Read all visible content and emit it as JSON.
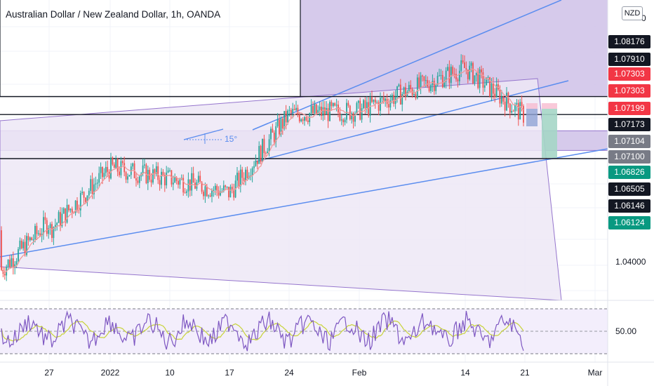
{
  "header": {
    "title": "Australian Dollar / New Zealand Dollar, 1h, OANDA",
    "currency_badge": "NZD",
    "currency_badge_value": "0"
  },
  "colors": {
    "band_fill": "#d1c4e9",
    "wedge_fill": "#ede7f6",
    "wedge_stroke": "#9575cd",
    "trendline": "#5b8def",
    "candle_up": "#26a69a",
    "candle_down": "#ef5350",
    "rsi_line": "#7e57c2",
    "rsi_ma": "#c7d338",
    "label_black": "#131722",
    "label_red": "#f23645",
    "label_gray": "#787b86",
    "label_green": "#089981"
  },
  "price_labels": [
    {
      "value": "1.08176",
      "color": "black"
    },
    {
      "value": "1.07910",
      "color": "black"
    },
    {
      "value": "1.07303",
      "color": "red"
    },
    {
      "value": "1.07303",
      "color": "red"
    },
    {
      "value": "1.07199",
      "color": "red"
    },
    {
      "value": "1.07173",
      "color": "black"
    },
    {
      "value": "1.07104",
      "color": "gray"
    },
    {
      "value": "1.07100",
      "color": "gray"
    },
    {
      "value": "1.06826",
      "color": "green"
    },
    {
      "value": "1.06505",
      "color": "black"
    },
    {
      "value": "1.06146",
      "color": "black"
    },
    {
      "value": "1.06124",
      "color": "green"
    }
  ],
  "price_axis": {
    "tick_label": "1.04000"
  },
  "rsi_axis": {
    "tick_label": "50.00"
  },
  "annotations": {
    "angle_label": "15°"
  },
  "chart_data": {
    "type": "candlestick",
    "title": "Australian Dollar / New Zealand Dollar, 1h, OANDA",
    "xlabel": "",
    "ylabel": "",
    "x_tick_labels": [
      "27",
      "2022",
      "10",
      "17",
      "24",
      "Feb",
      "14",
      "21",
      "Mar"
    ],
    "close_path": [
      {
        "t": "27",
        "close": 1.0655
      },
      {
        "t": "2022",
        "close": 1.069
      },
      {
        "t": "10",
        "close": 1.0684
      },
      {
        "t": "17",
        "close": 1.0676
      },
      {
        "t": "24",
        "close": 1.072
      },
      {
        "t": "Feb",
        "close": 1.0722
      },
      {
        "t": "14",
        "close": 1.0746
      },
      {
        "t": "21",
        "close": 1.0719
      }
    ],
    "horizontal_levels": [
      1.08176,
      1.0791,
      1.073,
      1.07199,
      1.07104,
      1.071
    ],
    "rsi": {
      "overbought": 70,
      "midline": 50,
      "oversold": 30
    }
  }
}
